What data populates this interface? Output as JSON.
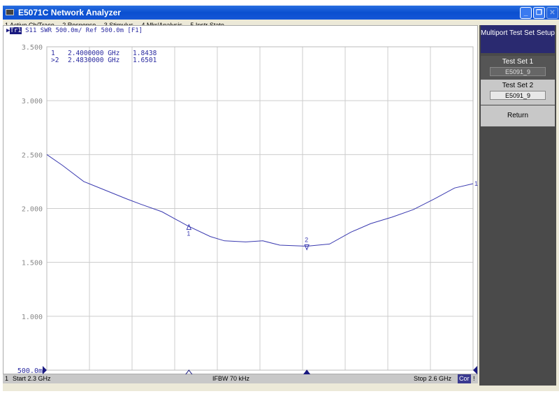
{
  "window": {
    "title": "E5071C Network Analyzer"
  },
  "menu": [
    "1 Active Ch/Trace",
    "2 Response",
    "3 Stimulus",
    "4 Mkr/Analysis",
    "5 Instr State"
  ],
  "trace_header": {
    "trace": "Tr1",
    "text": "S11  SWR 500.0m/ Ref 500.0m [F1]"
  },
  "markers_readout": [
    {
      "label": " 1",
      "freq": "2.4000000 GHz",
      "value": "1.8438"
    },
    {
      "label": ">2",
      "freq": "2.4830000 GHz",
      "value": "1.6501"
    }
  ],
  "chart_data": {
    "type": "line",
    "xlim": [
      2.3,
      2.6
    ],
    "ylim": [
      0.5,
      3.5
    ],
    "y_ticks": [
      "3.500",
      "3.000",
      "2.500",
      "2.000",
      "1.500",
      "1.000",
      "500.0m"
    ],
    "y_tick_values": [
      3.5,
      3.0,
      2.5,
      2.0,
      1.5,
      1.0,
      0.5
    ],
    "grid": true,
    "trace_color": "#3a3ab0",
    "x": [
      2.3,
      2.311,
      2.326,
      2.341,
      2.356,
      2.366,
      2.381,
      2.399,
      2.415,
      2.425,
      2.44,
      2.452,
      2.464,
      2.483,
      2.499,
      2.514,
      2.528,
      2.543,
      2.558,
      2.573,
      2.587,
      2.6
    ],
    "y": [
      2.5,
      2.4,
      2.25,
      2.17,
      2.09,
      2.04,
      1.97,
      1.84,
      1.74,
      1.7,
      1.69,
      1.7,
      1.66,
      1.65,
      1.67,
      1.78,
      1.86,
      1.92,
      1.99,
      2.09,
      2.19,
      2.23
    ],
    "markers": [
      {
        "id": "1",
        "x": 2.4,
        "y": 1.8438
      },
      {
        "id": "2",
        "x": 2.483,
        "y": 1.6501
      }
    ],
    "end_label": "1"
  },
  "status": {
    "channel": "1",
    "start": "Start 2.3 GHz",
    "ifbw": "IFBW 70 kHz",
    "stop": "Stop 2.6 GHz",
    "cor": "Cor",
    "flag": "!"
  },
  "softkeys": {
    "title": "Multiport Test Set Setup",
    "test_set_1": {
      "label": "Test Set 1",
      "value": "E5091_9"
    },
    "test_set_2": {
      "label": "Test Set 2",
      "value": "E5091_9"
    },
    "return": "Return"
  }
}
